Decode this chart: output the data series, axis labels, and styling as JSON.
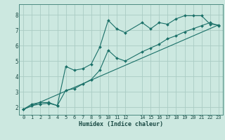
{
  "xlabel": "Humidex (Indice chaleur)",
  "bg_color": "#cce8e0",
  "grid_color": "#aaccc4",
  "line_color": "#1a7068",
  "xlim": [
    -0.5,
    23.5
  ],
  "ylim": [
    1.5,
    8.7
  ],
  "xticks": [
    0,
    1,
    2,
    3,
    4,
    5,
    6,
    7,
    8,
    9,
    10,
    11,
    12,
    14,
    15,
    16,
    17,
    18,
    19,
    20,
    21,
    22,
    23
  ],
  "yticks": [
    2,
    3,
    4,
    5,
    6,
    7,
    8
  ],
  "line1_x": [
    0,
    1,
    2,
    3,
    4,
    5,
    6,
    7,
    8,
    9,
    10,
    11,
    12,
    14,
    15,
    16,
    17,
    18,
    19,
    20,
    21,
    22,
    23
  ],
  "line1_y": [
    1.85,
    2.2,
    2.3,
    2.3,
    2.1,
    4.65,
    4.4,
    4.5,
    4.8,
    5.9,
    7.65,
    7.1,
    6.85,
    7.5,
    7.1,
    7.5,
    7.4,
    7.75,
    7.95,
    7.95,
    7.95,
    7.4,
    7.35
  ],
  "line2_x": [
    0,
    1,
    2,
    3,
    4,
    5,
    6,
    7,
    8,
    9,
    10,
    11,
    12,
    14,
    15,
    16,
    17,
    18,
    19,
    20,
    21,
    22,
    23
  ],
  "line2_y": [
    1.85,
    2.1,
    2.2,
    2.25,
    2.1,
    3.1,
    3.2,
    3.5,
    3.8,
    4.4,
    5.7,
    5.2,
    5.0,
    5.6,
    5.85,
    6.1,
    6.45,
    6.65,
    6.9,
    7.1,
    7.3,
    7.5,
    7.3
  ],
  "line3_x": [
    0,
    23
  ],
  "line3_y": [
    1.85,
    7.35
  ]
}
